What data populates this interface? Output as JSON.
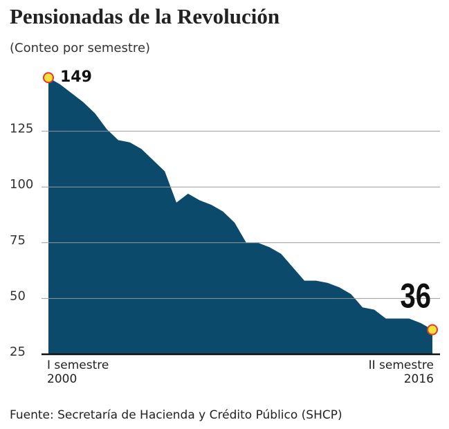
{
  "chart_data": {
    "type": "area",
    "title": "Pensionadas de la Revolución",
    "subtitle": "(Conteo por semestre)",
    "source": "Fuente: Secretaría de Hacienda y Crédito Público (SHCP)",
    "categories": [
      "I semestre 2000",
      null,
      null,
      null,
      null,
      null,
      null,
      null,
      null,
      null,
      null,
      null,
      null,
      null,
      null,
      null,
      null,
      null,
      null,
      null,
      null,
      null,
      null,
      null,
      null,
      null,
      null,
      null,
      null,
      null,
      null,
      null,
      null,
      "II semestre 2016"
    ],
    "values": [
      149,
      146,
      142,
      138,
      133,
      126,
      121,
      120,
      117,
      112,
      107,
      93,
      97,
      94,
      92,
      89,
      84,
      75,
      75,
      73,
      70,
      64,
      58,
      58,
      57,
      55,
      52,
      46,
      45,
      41,
      41,
      41,
      39,
      36
    ],
    "color": "#0c4a6b",
    "ylim": [
      25,
      150
    ],
    "yticks": [
      25,
      50,
      75,
      100,
      125
    ],
    "grid": true
  }
}
